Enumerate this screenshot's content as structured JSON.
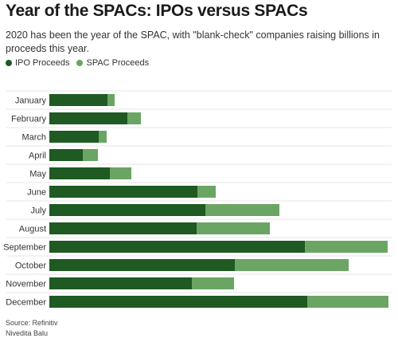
{
  "title": "Year of the SPACs: IPOs versus SPACs",
  "subtitle": "2020 has been the year of the SPAC, with \"blank-check\" companies raising billions in proceeds this year.",
  "source": "Source: Refinitiv",
  "author": "Nivedita Balu",
  "colors": {
    "ipo": "#1e5a21",
    "spac": "#6aa563",
    "gridline": "#e6e6e6"
  },
  "chart_data": {
    "type": "bar",
    "orientation": "horizontal",
    "stacked": true,
    "categories": [
      "January",
      "February",
      "March",
      "April",
      "May",
      "June",
      "July",
      "August",
      "September",
      "October",
      "November",
      "December"
    ],
    "series": [
      {
        "name": "IPO Proceeds",
        "values": [
          73,
          98,
          62,
          42,
          76,
          186,
          196,
          185,
          321,
          233,
          179,
          324
        ]
      },
      {
        "name": "SPAC Proceeds",
        "values": [
          9,
          17,
          10,
          19,
          27,
          23,
          93,
          92,
          104,
          143,
          53,
          102
        ]
      }
    ],
    "title": "Year of the SPACs: IPOs versus SPACs",
    "xlabel": "",
    "ylabel": "",
    "xlim": [
      0,
      426
    ],
    "legend": "top-left",
    "grid": true
  }
}
